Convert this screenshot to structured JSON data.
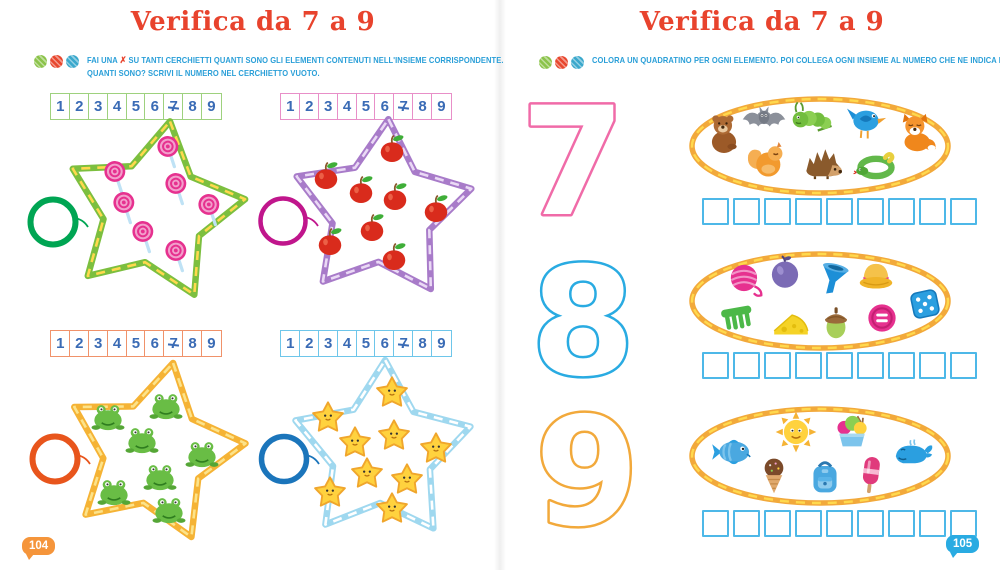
{
  "spread": {
    "left_page": {
      "title": "Verifica da 7 a 9",
      "page_number": "104",
      "page_badge_color": "#f5953b",
      "pencil_dot_colors": [
        "#8bc34a",
        "#e8472e",
        "#3aa8cc"
      ],
      "instruction": {
        "prefix": "FAI UNA",
        "cross": "✗",
        "line1_rest": "SU TANTI CERCHIETTI QUANTI SONO GLI ELEMENTI CONTENUTI NELL'INSIEME CORRISPONDENTE.",
        "line2": "QUANTI SONO? SCRIVI IL NUMERO NEL CERCHIETTO VUOTO."
      },
      "number_strip_digits": [
        "1",
        "2",
        "3",
        "4",
        "5",
        "6",
        "7",
        "8",
        "9"
      ],
      "sets": [
        {
          "name": "lollipops",
          "item_icon": "lollipop-icon",
          "count": 7,
          "strip_border_color": "#9ed17e",
          "rope_color": "#7cbf3f",
          "rope_accent": "#ffd94d",
          "answer_circle_color": "#00a553",
          "answer_circle_value": ""
        },
        {
          "name": "apples",
          "item_icon": "apple-icon",
          "count": 8,
          "strip_border_color": "#e88fc8",
          "rope_color": "#a87bc9",
          "rope_accent": "#ead9f5",
          "answer_circle_color": "#c0168c",
          "answer_circle_value": ""
        },
        {
          "name": "frogs",
          "item_icon": "frog-icon",
          "count": 7,
          "strip_border_color": "#f0926a",
          "rope_color": "#f5b335",
          "rope_accent": "#fce38a",
          "answer_circle_color": "#e8551c",
          "answer_circle_value": ""
        },
        {
          "name": "starfish",
          "item_icon": "starfish-icon",
          "count": 9,
          "strip_border_color": "#6ec6ea",
          "rope_color": "#9fd8ef",
          "rope_accent": "#ffffff",
          "answer_circle_color": "#1b75bb",
          "answer_circle_value": ""
        }
      ]
    },
    "right_page": {
      "title": "Verifica da 7 a 9",
      "page_number": "105",
      "page_badge_color": "#29abe2",
      "pencil_dot_colors": [
        "#8bc34a",
        "#e8472e",
        "#3aa8cc"
      ],
      "instruction": "COLORA UN QUADRATINO PER OGNI ELEMENTO. POI COLLEGA OGNI INSIEME AL NUMERO CHE NE INDICA LA QUANTITÀ.",
      "numbers": [
        {
          "value": "7",
          "outline_color": "#f06ba8"
        },
        {
          "value": "8",
          "outline_color": "#29abe2"
        },
        {
          "value": "9",
          "outline_color": "#f2a93b"
        }
      ],
      "groups": [
        {
          "name": "animals",
          "count": 8,
          "rope_color": "#f2a93b",
          "rope_accent": "#ffd94d",
          "squares_count": 9,
          "squares_filled": 0,
          "items": [
            "bear-icon",
            "bat-icon",
            "caterpillar-icon",
            "bird-icon",
            "fox-icon",
            "squirrel-icon",
            "hedgehog-icon",
            "snake-icon"
          ]
        },
        {
          "name": "objects",
          "count": 9,
          "rope_color": "#f2a93b",
          "rope_accent": "#ffd94d",
          "squares_count": 9,
          "squares_filled": 0,
          "items": [
            "yarn-icon",
            "plum-icon",
            "funnel-icon",
            "hat-icon",
            "die-icon",
            "comb-icon",
            "cheese-icon",
            "acorn-icon",
            "button-icon"
          ]
        },
        {
          "name": "summer-things",
          "count": 7,
          "rope_color": "#f2a93b",
          "rope_accent": "#ffd94d",
          "squares_count": 9,
          "squares_filled": 0,
          "items": [
            "fish-icon",
            "sun-icon",
            "icecream-cup-icon",
            "whale-icon",
            "icecream-cone-icon",
            "backpack-icon",
            "popsicle-icon"
          ]
        }
      ]
    }
  }
}
